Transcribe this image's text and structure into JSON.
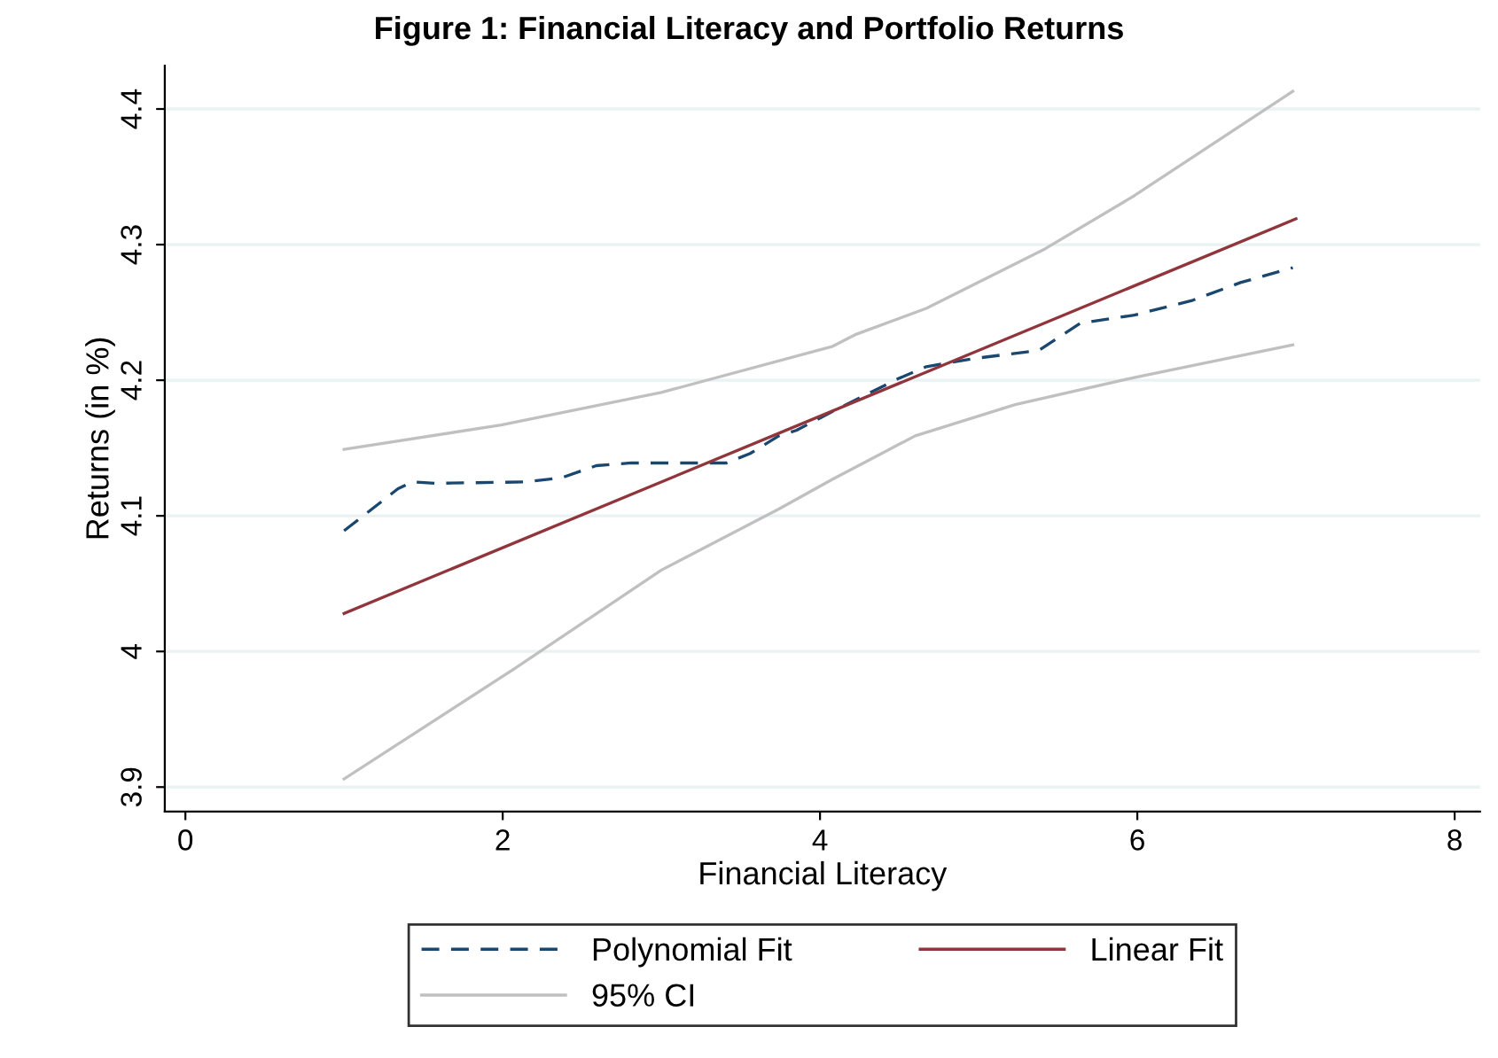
{
  "chart_data": {
    "type": "line",
    "title": "Figure 1: Financial Literacy and Portfolio Returns",
    "xlabel": "Financial Literacy",
    "ylabel": "Returns (in %)",
    "xlim": [
      -0.13,
      8.16
    ],
    "xticks": [
      0,
      2,
      4,
      6,
      8
    ],
    "ylim": [
      3.882,
      4.432
    ],
    "yticks": [
      3.9,
      4,
      4.1,
      4.2,
      4.3,
      4.4
    ],
    "grid": "y",
    "legend": "bottom",
    "series": [
      {
        "name": "Polynomial Fit",
        "color": "#1a476f",
        "line_style": "dashed",
        "x": [
          1.0,
          1.34,
          1.43,
          1.58,
          2.14,
          2.37,
          2.59,
          2.81,
          3.41,
          3.56,
          3.74,
          3.85,
          4.08,
          4.49,
          4.67,
          4.97,
          5.38,
          5.64,
          5.98,
          6.35,
          6.65,
          6.98
        ],
        "values": [
          4.089,
          4.12,
          4.125,
          4.124,
          4.125,
          4.128,
          4.137,
          4.139,
          4.139,
          4.146,
          4.159,
          4.163,
          4.177,
          4.201,
          4.21,
          4.216,
          4.222,
          4.242,
          4.248,
          4.259,
          4.272,
          4.283
        ]
      },
      {
        "name": "95% CI",
        "color": "#c0c0c0",
        "line_style": "solid",
        "x": [
          1.0,
          1.99,
          3.0,
          4.08,
          4.23,
          4.67,
          5.42,
          5.98,
          6.98
        ],
        "values": [
          4.149,
          4.167,
          4.191,
          4.225,
          4.234,
          4.253,
          4.297,
          4.336,
          4.413
        ]
      },
      {
        "name": "Linear Fit",
        "color": "#90353b",
        "line_style": "solid",
        "x": [
          1,
          7
        ],
        "values": [
          4.028,
          4.319
        ]
      },
      {
        "color": "#c0c0c0",
        "line_style": "solid",
        "x": [
          1.0,
          2.07,
          3.0,
          3.74,
          4.08,
          4.6,
          5.23,
          5.98,
          6.98
        ],
        "values": [
          3.906,
          3.987,
          4.06,
          4.105,
          4.127,
          4.159,
          4.182,
          4.202,
          4.226
        ]
      }
    ]
  }
}
